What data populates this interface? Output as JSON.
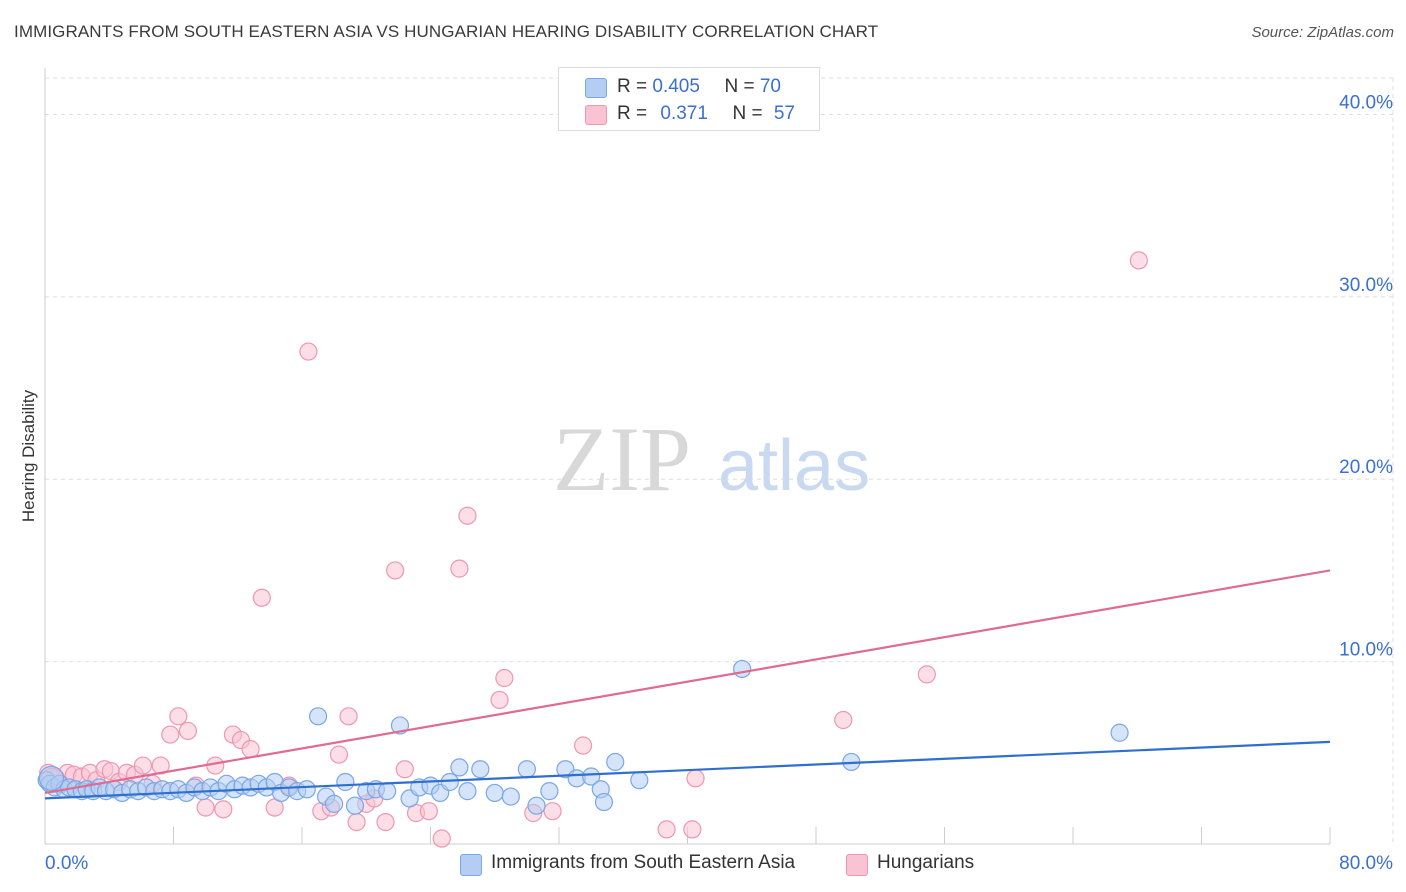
{
  "header": {
    "title": "IMMIGRANTS FROM SOUTH EASTERN ASIA VS HUNGARIAN HEARING DISABILITY CORRELATION CHART",
    "source": "Source: ZipAtlas.com"
  },
  "watermark": {
    "zip": "ZIP",
    "atlas": "atlas"
  },
  "stats_legend": {
    "blue": {
      "r_label": "R = ",
      "r_value": "0.405",
      "n_label": "N = ",
      "n_value": "70"
    },
    "pink": {
      "r_label": "R = ",
      "r_value": "0.371",
      "n_label": "N = ",
      "n_value": "57"
    }
  },
  "colors": {
    "blue_fill": "#b3cdf3",
    "blue_stroke": "#7aa7e6",
    "blue_line": "#2f6fcf",
    "pink_fill": "#f9c3d4",
    "pink_stroke": "#ee97b3",
    "pink_line": "#e06a92",
    "tick_label": "#3b6fd0",
    "grid": "#dddddd"
  },
  "chart_data": {
    "type": "scatter",
    "title": "IMMIGRANTS FROM SOUTH EASTERN ASIA VS HUNGARIAN HEARING DISABILITY CORRELATION CHART",
    "xlabel": "",
    "ylabel": "Hearing Disability",
    "xlim": [
      0,
      80
    ],
    "ylim": [
      0,
      42
    ],
    "x_tick_labels": [
      "0.0%",
      "80.0%"
    ],
    "y_ticks": [
      10,
      20,
      30,
      40
    ],
    "y_tick_labels": [
      "10.0%",
      "20.0%",
      "30.0%",
      "40.0%"
    ],
    "grid": true,
    "legend_position": "bottom",
    "series": [
      {
        "name": "Immigrants from South Eastern Asia",
        "color": "#7aa7e6",
        "trend": {
          "x": [
            0,
            80
          ],
          "y": [
            2.5,
            5.6
          ]
        },
        "points": [
          [
            0.1,
            3.5
          ],
          [
            0.3,
            3.3
          ],
          [
            0.6,
            3.1
          ],
          [
            0.9,
            3.3
          ],
          [
            1.2,
            3.0
          ],
          [
            1.5,
            3.1
          ],
          [
            1.9,
            3.0
          ],
          [
            2.3,
            2.9
          ],
          [
            2.6,
            3.0
          ],
          [
            3.0,
            2.9
          ],
          [
            3.4,
            3.1
          ],
          [
            3.8,
            2.9
          ],
          [
            4.3,
            3.0
          ],
          [
            4.8,
            2.8
          ],
          [
            5.3,
            3.0
          ],
          [
            5.8,
            2.9
          ],
          [
            6.3,
            3.1
          ],
          [
            6.8,
            2.9
          ],
          [
            7.3,
            3.0
          ],
          [
            7.8,
            2.9
          ],
          [
            8.3,
            3.0
          ],
          [
            8.8,
            2.8
          ],
          [
            9.3,
            3.1
          ],
          [
            9.8,
            2.9
          ],
          [
            10.3,
            3.1
          ],
          [
            10.8,
            2.9
          ],
          [
            11.3,
            3.3
          ],
          [
            11.8,
            3.0
          ],
          [
            12.3,
            3.2
          ],
          [
            12.8,
            3.1
          ],
          [
            13.3,
            3.3
          ],
          [
            13.8,
            3.1
          ],
          [
            14.3,
            3.4
          ],
          [
            14.7,
            2.8
          ],
          [
            15.2,
            3.1
          ],
          [
            15.7,
            2.9
          ],
          [
            16.3,
            3.0
          ],
          [
            17.0,
            7.0
          ],
          [
            17.5,
            2.6
          ],
          [
            18.0,
            2.2
          ],
          [
            18.7,
            3.4
          ],
          [
            19.3,
            2.1
          ],
          [
            20.0,
            2.9
          ],
          [
            20.6,
            3.0
          ],
          [
            21.3,
            2.9
          ],
          [
            22.1,
            6.5
          ],
          [
            22.7,
            2.5
          ],
          [
            23.3,
            3.1
          ],
          [
            24.0,
            3.2
          ],
          [
            24.6,
            2.8
          ],
          [
            25.2,
            3.4
          ],
          [
            25.8,
            4.2
          ],
          [
            26.3,
            2.9
          ],
          [
            27.1,
            4.1
          ],
          [
            28.0,
            2.8
          ],
          [
            29.0,
            2.6
          ],
          [
            30.0,
            4.1
          ],
          [
            30.6,
            2.1
          ],
          [
            31.4,
            2.9
          ],
          [
            32.4,
            4.1
          ],
          [
            33.1,
            3.6
          ],
          [
            34.0,
            3.7
          ],
          [
            34.6,
            3.0
          ],
          [
            34.8,
            2.3
          ],
          [
            35.5,
            4.5
          ],
          [
            37.0,
            3.5
          ],
          [
            43.4,
            9.6
          ],
          [
            50.2,
            4.5
          ],
          [
            66.9,
            6.1
          ],
          [
            0.4,
            3.6
          ]
        ]
      },
      {
        "name": "Hungarians",
        "color": "#ee97b3",
        "trend": {
          "x": [
            0,
            80
          ],
          "y": [
            2.8,
            15.0
          ]
        },
        "points": [
          [
            0.2,
            3.9
          ],
          [
            0.6,
            3.6
          ],
          [
            1.0,
            3.3
          ],
          [
            1.4,
            3.9
          ],
          [
            1.8,
            3.8
          ],
          [
            2.3,
            3.7
          ],
          [
            2.8,
            3.9
          ],
          [
            3.2,
            3.5
          ],
          [
            3.7,
            4.1
          ],
          [
            4.1,
            4.0
          ],
          [
            4.6,
            3.4
          ],
          [
            5.1,
            3.9
          ],
          [
            5.6,
            3.8
          ],
          [
            6.1,
            4.3
          ],
          [
            6.7,
            3.3
          ],
          [
            7.2,
            4.3
          ],
          [
            7.8,
            6.0
          ],
          [
            8.3,
            7.0
          ],
          [
            8.9,
            6.2
          ],
          [
            9.4,
            3.2
          ],
          [
            10.0,
            2.0
          ],
          [
            10.6,
            4.3
          ],
          [
            11.1,
            1.9
          ],
          [
            11.7,
            6.0
          ],
          [
            12.2,
            5.7
          ],
          [
            12.8,
            5.2
          ],
          [
            13.5,
            13.5
          ],
          [
            14.3,
            2.0
          ],
          [
            15.2,
            3.2
          ],
          [
            16.4,
            27.0
          ],
          [
            17.2,
            1.8
          ],
          [
            17.8,
            2.0
          ],
          [
            18.3,
            4.9
          ],
          [
            18.9,
            7.0
          ],
          [
            19.4,
            1.2
          ],
          [
            20.0,
            2.2
          ],
          [
            20.5,
            2.5
          ],
          [
            21.2,
            1.2
          ],
          [
            21.8,
            15.0
          ],
          [
            22.4,
            4.1
          ],
          [
            23.1,
            1.7
          ],
          [
            23.9,
            1.8
          ],
          [
            24.7,
            0.3
          ],
          [
            25.8,
            15.1
          ],
          [
            26.3,
            18.0
          ],
          [
            28.3,
            7.9
          ],
          [
            28.6,
            9.1
          ],
          [
            30.4,
            1.7
          ],
          [
            31.6,
            1.8
          ],
          [
            33.5,
            5.4
          ],
          [
            38.7,
            0.8
          ],
          [
            40.3,
            0.8
          ],
          [
            40.5,
            3.6
          ],
          [
            49.7,
            6.8
          ],
          [
            54.9,
            9.3
          ],
          [
            68.1,
            32.0
          ],
          [
            0.5,
            3.5
          ]
        ]
      }
    ]
  },
  "bottom_legend": {
    "blue_label": "Immigrants from South Eastern Asia",
    "pink_label": "Hungarians"
  }
}
